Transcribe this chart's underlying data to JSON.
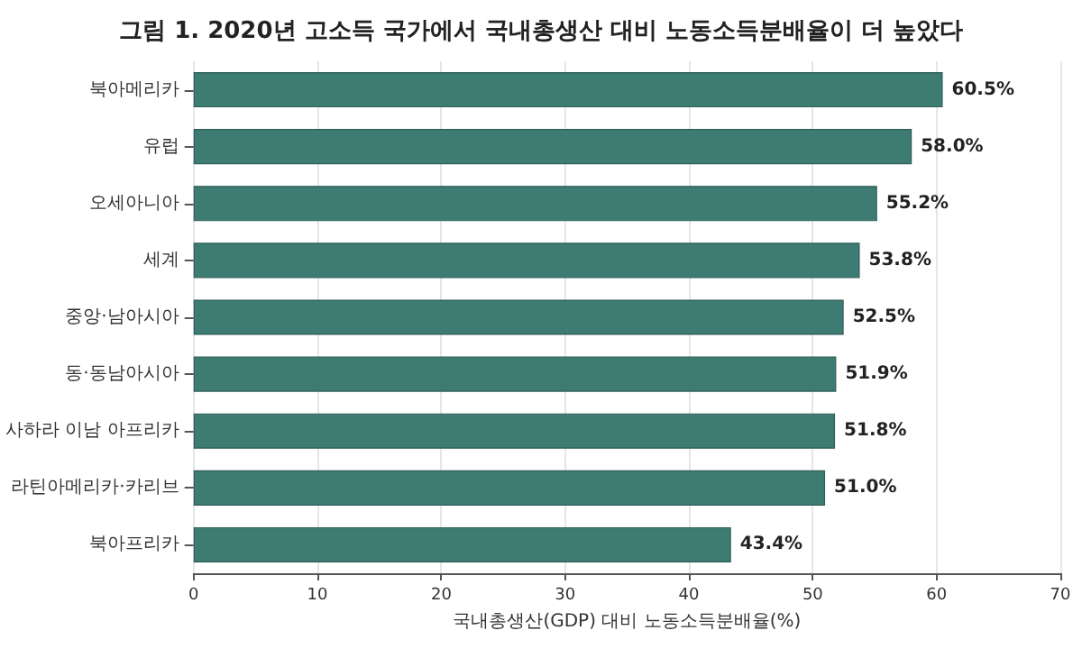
{
  "chart_data": {
    "type": "bar",
    "orientation": "horizontal",
    "title": "그림 1. 2020년 고소득 국가에서 국내총생산 대비 노동소득분배율이 더 높았다",
    "xlabel": "국내총생산(GDP) 대비 노동소득분배율(%)",
    "categories": [
      "북아메리카",
      "유럽",
      "오세아니아",
      "세계",
      "중앙·남아시아",
      "동·동남아시아",
      "사하라 이남 아프리카",
      "라틴아메리카·카리브",
      "북아프리카"
    ],
    "values": [
      60.5,
      58.0,
      55.2,
      53.8,
      52.5,
      51.9,
      51.8,
      51.0,
      43.4
    ],
    "value_labels": [
      "60.5%",
      "58.0%",
      "55.2%",
      "53.8%",
      "52.5%",
      "51.9%",
      "51.8%",
      "51.0%",
      "43.4%"
    ],
    "color": "#3d7b73",
    "xlim": [
      0,
      70
    ],
    "xticks": [
      0,
      10,
      20,
      30,
      40,
      50,
      60,
      70
    ],
    "grid": "x"
  }
}
